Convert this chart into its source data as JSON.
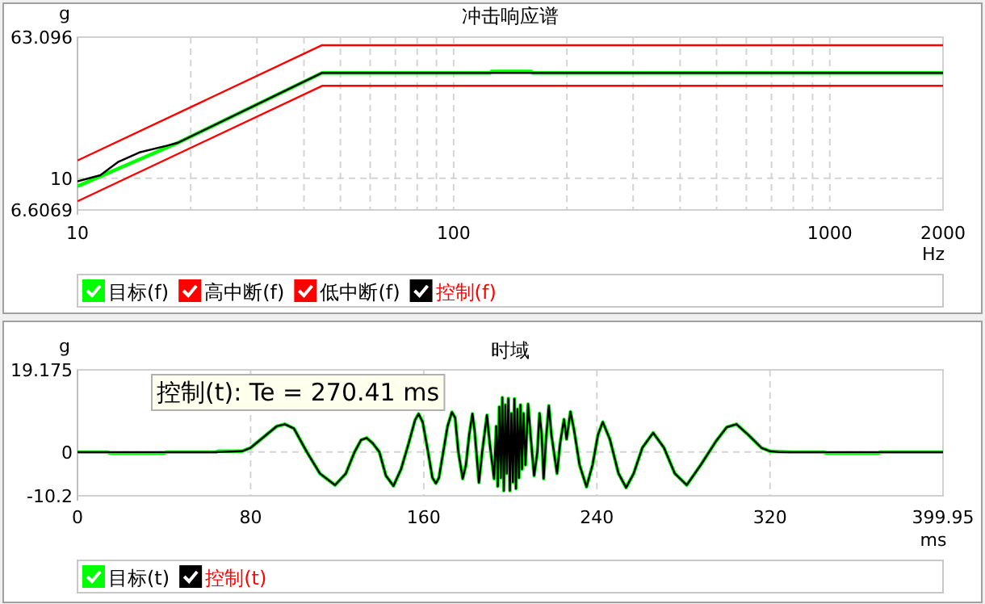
{
  "chart_data": [
    {
      "type": "line",
      "title": "冲击响应谱",
      "xlabel": "Hz",
      "ylabel": "g",
      "log": "xy",
      "xlim": [
        10,
        2000
      ],
      "ylim": [
        6.6069,
        63.096
      ],
      "xticks": [
        10,
        {
          "value": 20,
          "label": null
        },
        {
          "value": 30,
          "label": null
        },
        {
          "value": 40,
          "label": null
        },
        {
          "value": 50,
          "label": null
        },
        {
          "value": 60,
          "label": null
        },
        {
          "value": 70,
          "label": null
        },
        {
          "value": 80,
          "label": null
        },
        {
          "value": 90,
          "label": null
        },
        100,
        {
          "value": 200,
          "label": null
        },
        {
          "value": 300,
          "label": null
        },
        {
          "value": 400,
          "label": null
        },
        {
          "value": 500,
          "label": null
        },
        {
          "value": 600,
          "label": null
        },
        {
          "value": 700,
          "label": null
        },
        {
          "value": 800,
          "label": null
        },
        {
          "value": 900,
          "label": null
        },
        1000,
        2000
      ],
      "yticks": [
        6.6069,
        10,
        63.096
      ],
      "grid": true,
      "legend": "bottom",
      "marker": "none",
      "series": [
        {
          "name": "目标(f)",
          "color": "#00ff00",
          "x": [
            10,
            18.5,
            44.7,
            125,
            126,
            161,
            162,
            2000
          ],
          "values": [
            9.0,
            15.9,
            39.6,
            39.6,
            40.3,
            40.3,
            39.6,
            39.6
          ]
        },
        {
          "name": "高中断(f)",
          "color": "#ff0000",
          "x": [
            10,
            44.7,
            2000
          ],
          "values": [
            12.6,
            56.8,
            56.8
          ]
        },
        {
          "name": "低中断(f)",
          "color": "#ff0000",
          "x": [
            10,
            44.7,
            2000
          ],
          "values": [
            7.4,
            33.4,
            33.4
          ]
        },
        {
          "name": "控制(f)",
          "color": "#000000",
          "x": [
            10,
            11.5,
            12.85,
            14.6,
            17.3,
            18.5,
            44.7,
            2000
          ],
          "values": [
            9.6,
            10.4,
            12.4,
            14.0,
            15.3,
            15.9,
            39.6,
            39.6
          ]
        }
      ]
    },
    {
      "type": "line",
      "title": "时域",
      "xlabel": "ms",
      "ylabel": "g",
      "xlim": [
        0,
        399.95
      ],
      "ylim": [
        -10.2,
        19.175
      ],
      "xticks": [
        0,
        80,
        160,
        240,
        320,
        399.95
      ],
      "yticks": [
        -10.2,
        0,
        19.175
      ],
      "grid": true,
      "legend": "bottom",
      "marker": "none",
      "annotations": [
        "控制(t): Te = 270.41 ms"
      ],
      "series": [
        {
          "name": "目标(t)",
          "color": "#00ff00",
          "x": [
            0,
            14,
            15,
            40,
            41,
            64,
            65,
            76,
            80,
            86,
            92,
            95.8,
            100,
            106,
            112,
            119,
            124,
            128,
            131,
            133.6,
            136.5,
            139.5,
            142.5,
            146,
            149.5,
            153,
            156,
            157.6,
            159.5,
            162,
            164,
            165.6,
            167,
            169,
            171,
            173,
            174.5,
            176,
            178,
            179.5,
            181,
            182.5,
            183.5,
            185.5,
            187,
            189.2,
            190.5,
            192.5,
            193.5,
            194.2,
            194.9,
            195.6,
            196.3,
            197,
            197.7,
            198.4,
            199.1,
            199.8,
            200.5,
            201.2,
            201.9,
            202.6,
            203.3,
            204,
            204.7,
            205.4,
            206.1,
            207,
            208.2,
            209.5,
            211,
            212.5,
            213.5,
            214.5,
            215.4,
            216.5,
            217.8,
            219,
            221.6,
            223,
            224.8,
            226,
            227.8,
            229.5,
            232,
            235.2,
            238,
            240.5,
            242.7,
            246,
            250,
            253.5,
            257,
            261,
            266,
            271,
            276,
            281.5,
            288,
            295,
            300,
            304.5,
            310,
            316,
            320,
            324,
            330,
            345,
            346,
            370,
            371,
            399.95
          ],
          "values": [
            0,
            0,
            -0.3,
            -0.3,
            0,
            0,
            0.2,
            0.2,
            1,
            3.5,
            6,
            6.5,
            5.5,
            0,
            -5,
            -7.7,
            -5,
            0,
            2.8,
            3.3,
            2,
            0,
            -5.5,
            -7.9,
            -4,
            2,
            7.5,
            8.9,
            7,
            0,
            -6,
            -7.3,
            -6,
            0,
            6,
            9.3,
            8,
            0,
            -6.2,
            -3,
            4,
            8.9,
            5,
            -7.1,
            0,
            8.6,
            2,
            -6.2,
            6,
            -8,
            10.5,
            -6,
            12.7,
            -9,
            11,
            -5,
            12.5,
            -9,
            9,
            -7,
            12.4,
            -8.5,
            10,
            -6,
            11,
            -4,
            9,
            -3,
            11.2,
            3,
            -5.5,
            0,
            9,
            4,
            -6.2,
            3,
            10.8,
            4,
            -5.0,
            2,
            7.6,
            3,
            9.4,
            5,
            -3,
            -8.1,
            -3,
            4,
            7.0,
            3,
            -5,
            -8.3,
            -5,
            1,
            4.5,
            1,
            -5,
            -7.7,
            -3,
            2.5,
            5.8,
            6.5,
            4,
            1,
            0.2,
            0.1,
            0,
            0,
            -0.3,
            -0.3,
            0,
            0
          ]
        },
        {
          "name": "控制(t)",
          "color": "#000000",
          "x": [
            0,
            64,
            76,
            80,
            86,
            92,
            95.8,
            100,
            106,
            112,
            119,
            124,
            128,
            131,
            133.6,
            136.5,
            139.5,
            142.5,
            146,
            149.5,
            153,
            156,
            157.6,
            159.5,
            162,
            164,
            165.6,
            167,
            169,
            171,
            173,
            174.5,
            176,
            178,
            179.5,
            181,
            182.5,
            183.5,
            185.5,
            187,
            189.2,
            190.5,
            192.5,
            193.5,
            194.2,
            194.9,
            195.6,
            196.3,
            197,
            197.7,
            198.4,
            199.1,
            199.8,
            200.5,
            201.2,
            201.9,
            202.6,
            203.3,
            204,
            204.7,
            205.4,
            206.1,
            207,
            208.2,
            209.5,
            211,
            212.5,
            213.5,
            214.5,
            215.4,
            216.5,
            217.8,
            219,
            221.6,
            223,
            224.8,
            226,
            227.8,
            229.5,
            232,
            235.2,
            238,
            240.5,
            242.7,
            246,
            250,
            253.5,
            257,
            261,
            266,
            271,
            276,
            281.5,
            288,
            295,
            300,
            304.5,
            310,
            316,
            320,
            324,
            399.95
          ],
          "values": [
            0,
            0,
            0.2,
            1,
            3.5,
            6,
            6.5,
            5.5,
            0,
            -5,
            -7.7,
            -5,
            0,
            2.8,
            3.3,
            2,
            0,
            -5.5,
            -7.9,
            -4,
            2,
            7.5,
            8.9,
            7,
            0,
            -6,
            -7.3,
            -6,
            0,
            6,
            9.3,
            8,
            0,
            -6.2,
            -3,
            4,
            8.9,
            5,
            -7.1,
            0,
            8.6,
            2,
            -6.2,
            6,
            -8,
            10.5,
            -6,
            12.7,
            -9,
            11,
            -5,
            12.5,
            -9,
            9,
            -7,
            12.4,
            -8.5,
            10,
            -6,
            11,
            -4,
            9,
            -3,
            11.2,
            3,
            -5.5,
            0,
            9,
            4,
            -6.2,
            3,
            10.8,
            4,
            -5.0,
            2,
            7.6,
            3,
            9.4,
            5,
            -3,
            -8.1,
            -3,
            4,
            7.0,
            3,
            -5,
            -8.3,
            -5,
            1,
            4.5,
            1,
            -5,
            -7.7,
            -3,
            2.5,
            5.8,
            6.5,
            4,
            1,
            0.2,
            0,
            0
          ]
        }
      ]
    }
  ]
}
